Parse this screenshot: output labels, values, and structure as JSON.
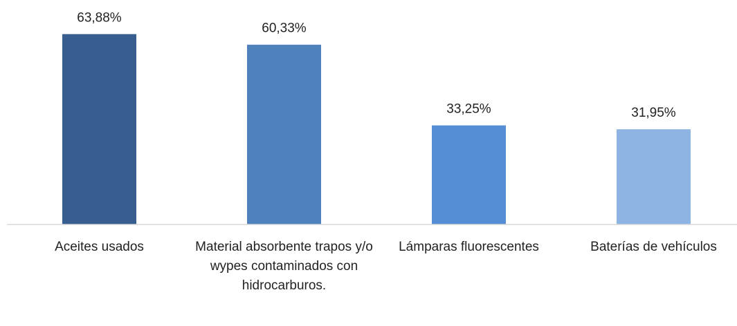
{
  "chart_data": {
    "type": "bar",
    "categories": [
      "Aceites usados",
      "Material absorbente trapos y/o wypes contaminados con hidrocarburos.",
      "Lámparas fluorescentes",
      "Baterías de vehículos"
    ],
    "values": [
      63.88,
      60.33,
      33.25,
      31.95
    ],
    "value_labels": [
      "63,88%",
      "60,33%",
      "33,25%",
      "31,95%"
    ],
    "colors": [
      "#375e8f",
      "#4f81bd",
      "#558ed5",
      "#8eb4e3"
    ],
    "ylim": [
      0,
      70
    ]
  }
}
